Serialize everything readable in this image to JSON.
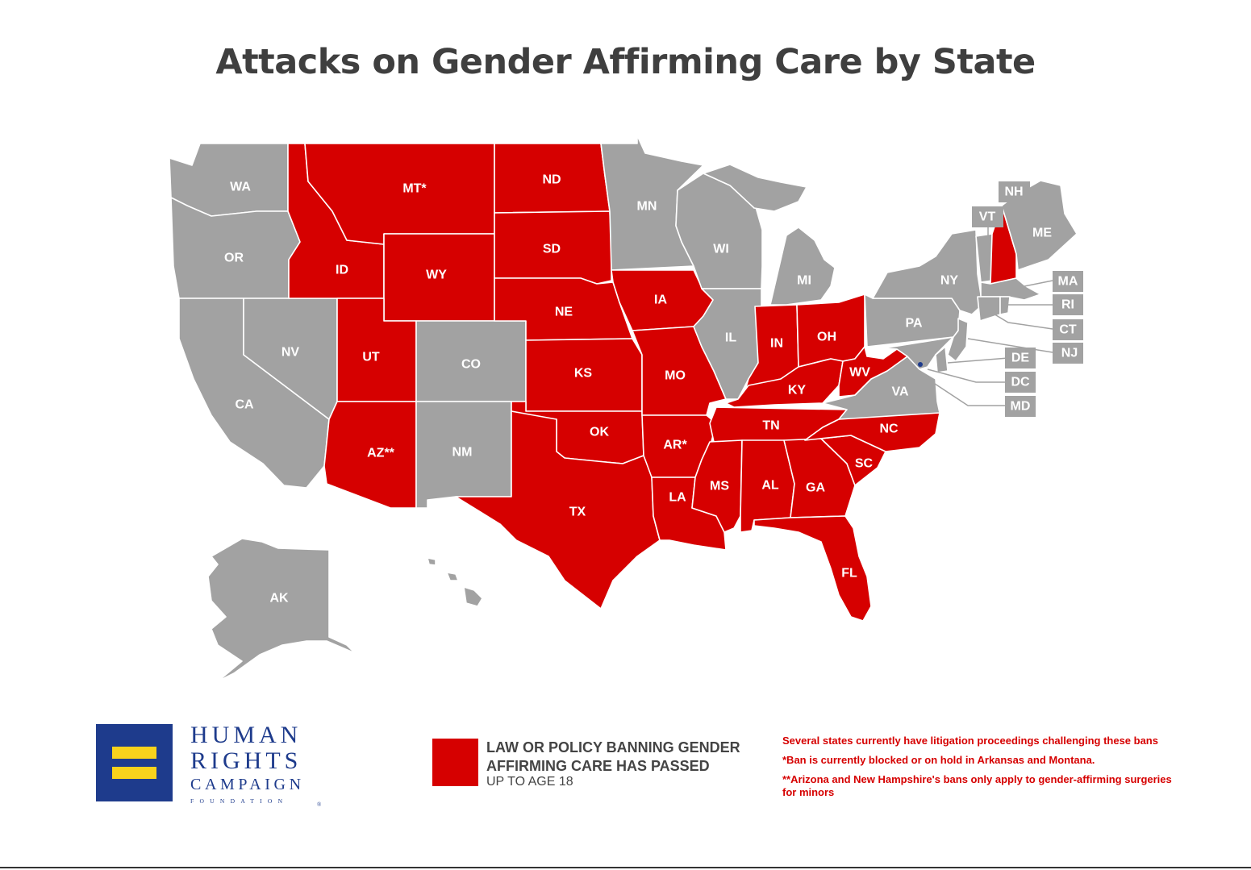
{
  "title": "Attacks on Gender Affirming Care by State",
  "colors": {
    "banned": "#d60000",
    "other": "#a2a2a2",
    "border": "#ffffff",
    "title": "#3f3f3f"
  },
  "states": [
    {
      "abbr": "WA",
      "status": "other"
    },
    {
      "abbr": "OR",
      "status": "other"
    },
    {
      "abbr": "CA",
      "status": "other"
    },
    {
      "abbr": "NV",
      "status": "other"
    },
    {
      "abbr": "ID",
      "status": "banned"
    },
    {
      "abbr": "MT*",
      "status": "banned"
    },
    {
      "abbr": "WY",
      "status": "banned"
    },
    {
      "abbr": "UT",
      "status": "banned"
    },
    {
      "abbr": "CO",
      "status": "other"
    },
    {
      "abbr": "AZ**",
      "status": "banned"
    },
    {
      "abbr": "NM",
      "status": "other"
    },
    {
      "abbr": "ND",
      "status": "banned"
    },
    {
      "abbr": "SD",
      "status": "banned"
    },
    {
      "abbr": "NE",
      "status": "banned"
    },
    {
      "abbr": "KS",
      "status": "banned"
    },
    {
      "abbr": "OK",
      "status": "banned"
    },
    {
      "abbr": "TX",
      "status": "banned"
    },
    {
      "abbr": "MN",
      "status": "other"
    },
    {
      "abbr": "IA",
      "status": "banned"
    },
    {
      "abbr": "MO",
      "status": "banned"
    },
    {
      "abbr": "AR*",
      "status": "banned"
    },
    {
      "abbr": "LA",
      "status": "banned"
    },
    {
      "abbr": "WI",
      "status": "other"
    },
    {
      "abbr": "IL",
      "status": "other"
    },
    {
      "abbr": "MI",
      "status": "other"
    },
    {
      "abbr": "IN",
      "status": "banned"
    },
    {
      "abbr": "OH",
      "status": "banned"
    },
    {
      "abbr": "KY",
      "status": "banned"
    },
    {
      "abbr": "TN",
      "status": "banned"
    },
    {
      "abbr": "MS",
      "status": "banned"
    },
    {
      "abbr": "AL",
      "status": "banned"
    },
    {
      "abbr": "GA",
      "status": "banned"
    },
    {
      "abbr": "FL",
      "status": "banned"
    },
    {
      "abbr": "SC",
      "status": "banned"
    },
    {
      "abbr": "NC",
      "status": "banned"
    },
    {
      "abbr": "VA",
      "status": "other"
    },
    {
      "abbr": "WV",
      "status": "banned"
    },
    {
      "abbr": "PA",
      "status": "other"
    },
    {
      "abbr": "NY",
      "status": "other"
    },
    {
      "abbr": "ME",
      "status": "other"
    },
    {
      "abbr": "NH",
      "status": "banned"
    },
    {
      "abbr": "VT",
      "status": "other"
    },
    {
      "abbr": "MA",
      "status": "other"
    },
    {
      "abbr": "RI",
      "status": "other"
    },
    {
      "abbr": "CT",
      "status": "other"
    },
    {
      "abbr": "NJ",
      "status": "other"
    },
    {
      "abbr": "DE",
      "status": "other"
    },
    {
      "abbr": "DC",
      "status": "other"
    },
    {
      "abbr": "MD",
      "status": "other"
    },
    {
      "abbr": "AK",
      "status": "other"
    },
    {
      "abbr": "HI",
      "status": "other"
    }
  ],
  "legend": {
    "label_line1": "LAW OR POLICY BANNING GENDER",
    "label_line2": "AFFIRMING CARE HAS PASSED",
    "sublabel": "UP TO AGE 18"
  },
  "notes": [
    "Several states currently have litigation proceedings challenging these bans",
    "*Ban is currently blocked or on hold in Arkansas and Montana.",
    "**Arizona and New Hampshire's bans only apply to gender-affirming surgeries for minors"
  ],
  "logo": {
    "line1": "HUMAN",
    "line2": "RIGHTS",
    "line3": "CAMPAIGN",
    "line4": "FOUNDATION",
    "reg": "®"
  }
}
